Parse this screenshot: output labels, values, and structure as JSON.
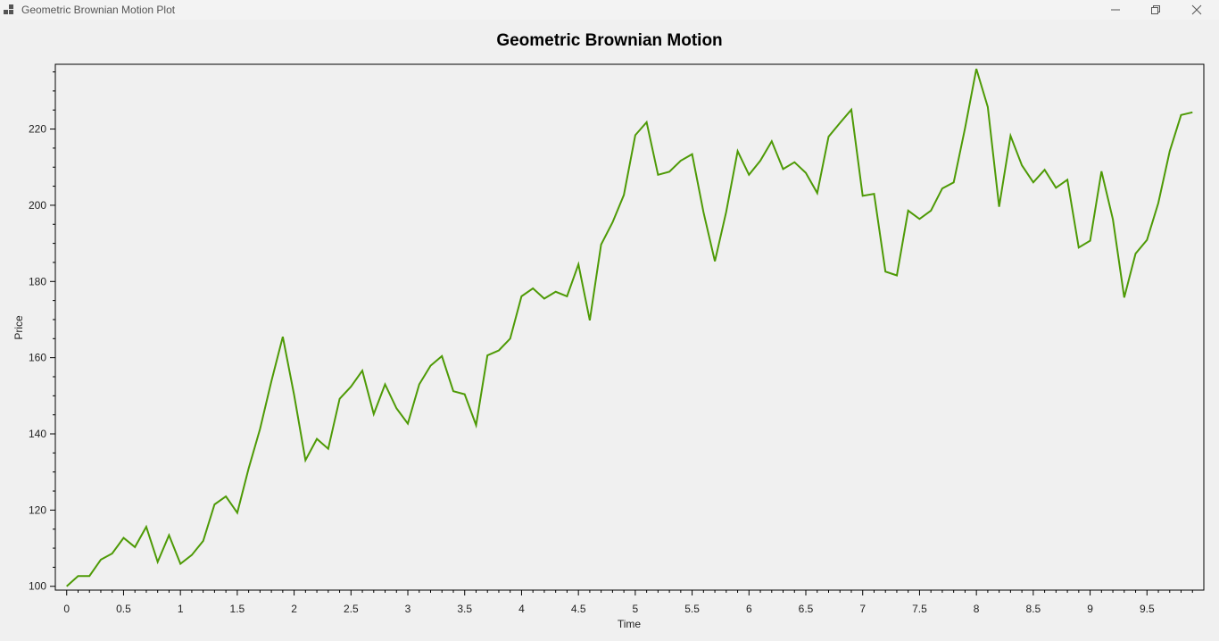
{
  "window": {
    "title": "Geometric Brownian Motion Plot",
    "minimize_icon": "minimize-icon",
    "restore_icon": "restore-icon",
    "close_icon": "close-icon"
  },
  "colors": {
    "line": "#4e9a06",
    "frame": "#000000",
    "background": "#f0f0f0"
  },
  "chart_data": {
    "type": "line",
    "title": "Geometric Brownian Motion",
    "xlabel": "Time",
    "ylabel": "Price",
    "xlim": [
      -0.1,
      10.0
    ],
    "ylim": [
      99,
      237
    ],
    "xticks": [
      0,
      0.5,
      1,
      1.5,
      2,
      2.5,
      3,
      3.5,
      4,
      4.5,
      5,
      5.5,
      6,
      6.5,
      7,
      7.5,
      8,
      8.5,
      9,
      9.5
    ],
    "xtick_labels": [
      "0",
      "0.5",
      "1",
      "1.5",
      "2",
      "2.5",
      "3",
      "3.5",
      "4",
      "4.5",
      "5",
      "5.5",
      "6",
      "6.5",
      "7",
      "7.5",
      "8",
      "8.5",
      "9",
      "9.5"
    ],
    "yticks": [
      100,
      120,
      140,
      160,
      180,
      200,
      220
    ],
    "ytick_labels": [
      "100",
      "120",
      "140",
      "160",
      "180",
      "200",
      "220"
    ],
    "grid": false,
    "x": [
      0,
      0.1,
      0.2,
      0.3,
      0.4,
      0.5,
      0.6,
      0.7,
      0.8,
      0.9,
      1.0,
      1.1,
      1.2,
      1.3,
      1.4,
      1.5,
      1.6,
      1.7,
      1.8,
      1.9,
      2.0,
      2.1,
      2.2,
      2.3,
      2.4,
      2.5,
      2.6,
      2.7,
      2.8,
      2.9,
      3.0,
      3.1,
      3.2,
      3.3,
      3.4,
      3.5,
      3.6,
      3.7,
      3.8,
      3.9,
      4.0,
      4.1,
      4.2,
      4.3,
      4.4,
      4.5,
      4.6,
      4.7,
      4.8,
      4.9,
      5.0,
      5.1,
      5.2,
      5.3,
      5.4,
      5.5,
      5.6,
      5.7,
      5.8,
      5.9,
      6.0,
      6.1,
      6.2,
      6.3,
      6.4,
      6.5,
      6.6,
      6.7,
      6.8,
      6.9,
      7.0,
      7.1,
      7.2,
      7.3,
      7.4,
      7.5,
      7.6,
      7.7,
      7.8,
      7.9,
      8.0,
      8.1,
      8.2,
      8.3,
      8.4,
      8.5,
      8.6,
      8.7,
      8.8,
      8.9,
      9.0,
      9.1,
      9.2,
      9.3,
      9.4,
      9.5,
      9.6,
      9.7,
      9.8,
      9.9
    ],
    "series": [
      {
        "values": [
          100,
          102.7,
          102.7,
          107.0,
          108.6,
          112.7,
          110.3,
          115.6,
          106.4,
          113.4,
          105.9,
          108.2,
          111.9,
          121.5,
          123.6,
          119.3,
          130.9,
          141.3,
          153.8,
          165.5,
          150.2,
          133.1,
          138.7,
          136.1,
          149.2,
          152.4,
          156.6,
          145.2,
          153.0,
          146.7,
          142.7,
          153.0,
          157.9,
          160.4,
          151.2,
          150.4,
          142.3,
          160.6,
          161.9,
          165.0,
          176.1,
          178.2,
          175.5,
          177.3,
          176.1,
          184.5,
          169.8,
          189.7,
          195.5,
          202.7,
          218.4,
          221.8,
          208.0,
          208.8,
          211.7,
          213.4,
          198.2,
          185.3,
          198.3,
          214.2,
          208.0,
          211.7,
          216.8,
          209.5,
          211.3,
          208.5,
          203.2,
          218.0,
          221.6,
          225.1,
          202.5,
          203.0,
          182.6,
          181.6,
          198.6,
          196.4,
          198.6,
          204.4,
          206.0,
          220.2,
          235.8,
          225.8,
          199.6,
          218.2,
          210.5,
          206.0,
          209.3,
          204.6,
          206.7,
          188.9,
          190.7,
          208.9,
          196.3,
          175.8,
          187.3,
          190.9,
          200.6,
          214.2,
          223.7,
          224.4
        ]
      }
    ]
  }
}
